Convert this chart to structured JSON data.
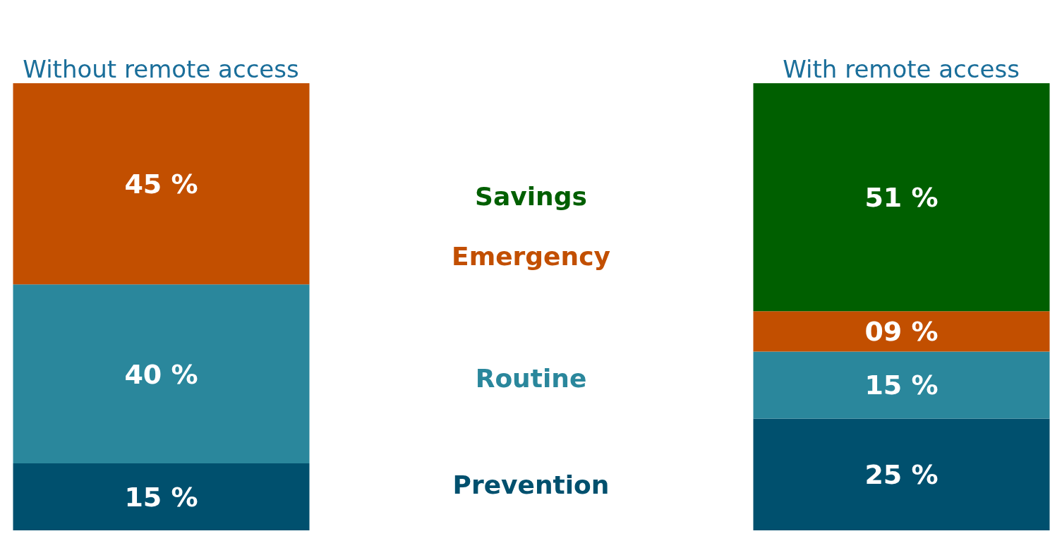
{
  "chart_data": {
    "type": "bar",
    "stacked": true,
    "categories": [
      "Without remote access",
      "With remote access"
    ],
    "series": [
      {
        "name": "Prevention",
        "color": "#00506e",
        "values": [
          15,
          25
        ],
        "value_labels": [
          "15 %",
          "25 %"
        ]
      },
      {
        "name": "Routine",
        "color": "#2a879c",
        "values": [
          40,
          15
        ],
        "value_labels": [
          "40 %",
          "15 %"
        ]
      },
      {
        "name": "Emergency",
        "color": "#c24f00",
        "values": [
          45,
          9
        ],
        "value_labels": [
          "45 %",
          "09 %"
        ]
      },
      {
        "name": "Savings",
        "color": "#005f00",
        "values": [
          null,
          51
        ],
        "value_labels": [
          null,
          "51 %"
        ]
      }
    ],
    "legend": false,
    "grid": false
  }
}
